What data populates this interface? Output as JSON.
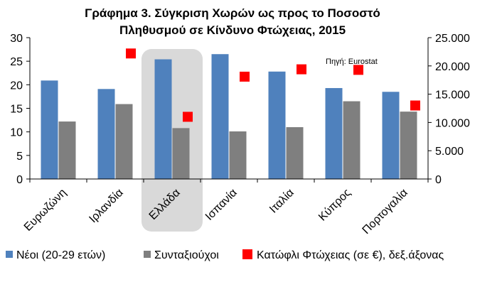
{
  "chart_data": {
    "type": "bar",
    "title_lines": [
      "Γράφημα 3. Σύγκριση Χωρών ως προς το Ποσοστό",
      "Πληθυσμού σε Κίνδυνο Φτώχειας, 2015"
    ],
    "source_note": "Πηγή: Eurostat",
    "categories": [
      "Ευρωζώνη",
      "Ιρλανδία",
      "Ελλάδα",
      "Ισπανία",
      "Ιταλία",
      "Κύπρος",
      "Πορτογαλία"
    ],
    "highlight_category": "Ελλάδα",
    "y_left": {
      "ylim": [
        0,
        30
      ],
      "ticks": [
        "0",
        "5",
        "10",
        "15",
        "20",
        "25",
        "30"
      ]
    },
    "y_right": {
      "ylim": [
        0,
        25000
      ],
      "ticks": [
        "0",
        "5.000",
        "10.000",
        "15.000",
        "20.000",
        "25.000"
      ]
    },
    "grid": false,
    "legend_position": "bottom",
    "series": [
      {
        "name": "Νέοι (20-29 ετών)",
        "kind": "bar",
        "axis": "left",
        "color": "#4f81bd",
        "values": [
          20.9,
          19.1,
          25.4,
          26.5,
          22.8,
          19.3,
          18.5
        ]
      },
      {
        "name": "Συνταξιούχοι",
        "kind": "bar",
        "axis": "left",
        "color": "#7f7f7f",
        "values": [
          12.2,
          15.9,
          10.8,
          10.1,
          11.0,
          16.5,
          14.3
        ]
      },
      {
        "name": "Κατώφλι Φτώχειας (σε €), δεξ.άξονας",
        "kind": "marker",
        "axis": "right",
        "color": "#ff0000",
        "values": [
          null,
          22200,
          11000,
          18100,
          19400,
          19300,
          13000
        ]
      }
    ]
  }
}
